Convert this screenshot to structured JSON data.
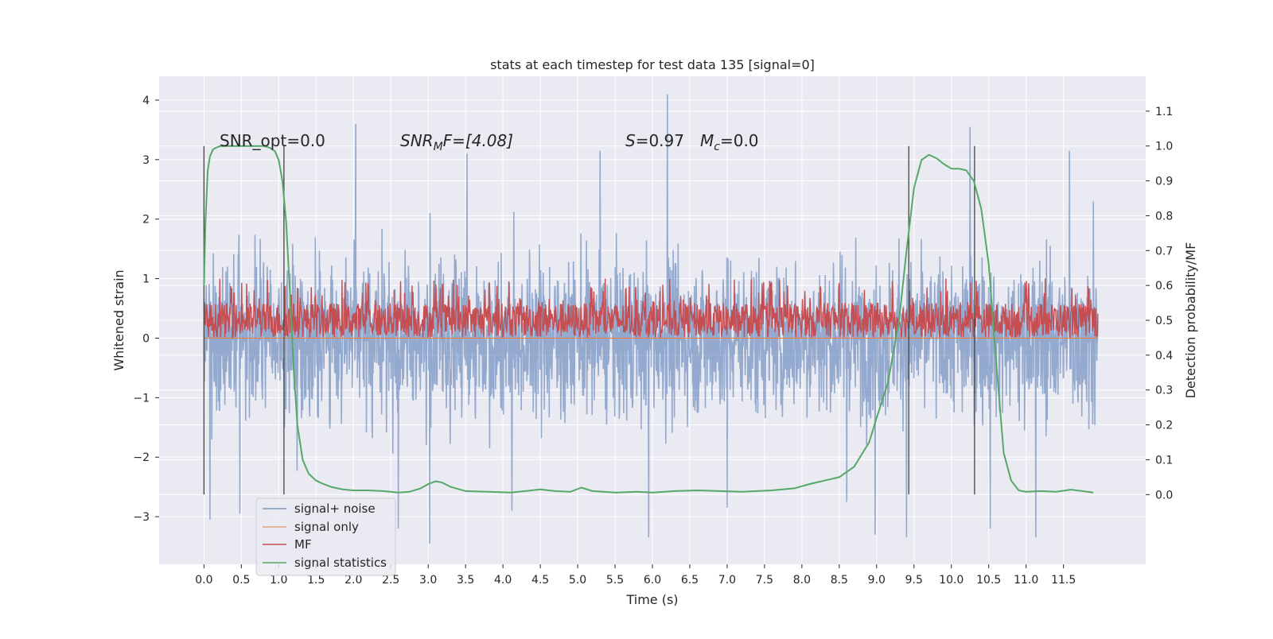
{
  "chart_data": {
    "type": "line",
    "title": "stats at each timestep for test data 135 [signal=0]",
    "xlabel": "Time (s)",
    "ylabel_left": "Whitened strain",
    "ylabel_right": "Detection probability/MF",
    "xlim": [
      -0.6,
      12.6
    ],
    "ylim_left": [
      -3.8,
      4.4
    ],
    "ylim_right": [
      -0.2,
      1.2
    ],
    "x_ticks": [
      0.0,
      0.5,
      1.0,
      1.5,
      2.0,
      2.5,
      3.0,
      3.5,
      4.0,
      4.5,
      5.0,
      5.5,
      6.0,
      6.5,
      7.0,
      7.5,
      8.0,
      8.5,
      9.0,
      9.5,
      10.0,
      10.5,
      11.0,
      11.5
    ],
    "x_tick_labels": [
      "0.0",
      "0.5",
      "1.0",
      "1.5",
      "2.0",
      "2.5",
      "3.0",
      "3.5",
      "4.0",
      "4.5",
      "5.0",
      "5.5",
      "6.0",
      "6.5",
      "7.0",
      "7.5",
      "8.0",
      "8.5",
      "9.0",
      "9.5",
      "10.0",
      "10.5",
      "11.0",
      "11.5"
    ],
    "y_ticks_left": [
      -3,
      -2,
      -1,
      0,
      1,
      2,
      3,
      4
    ],
    "y_tick_labels_left": [
      "−3",
      "−2",
      "−1",
      "0",
      "1",
      "2",
      "3",
      "4"
    ],
    "y_ticks_right": [
      0.0,
      0.1,
      0.2,
      0.3,
      0.4,
      0.5,
      0.6,
      0.7,
      0.8,
      0.9,
      1.0,
      1.1
    ],
    "y_tick_labels_right": [
      "0.0",
      "0.1",
      "0.2",
      "0.3",
      "0.4",
      "0.5",
      "0.6",
      "0.7",
      "0.8",
      "0.9",
      "1.0",
      "1.1"
    ],
    "grid": true,
    "legend_position": "lower-left",
    "annotations": {
      "snr_opt": "SNR_opt=0.0",
      "snr_mf_main": "SNR",
      "snr_mf_sub": "M",
      "snr_mf_rest": "F=[4.08]",
      "s_main": "S",
      "s_rest": "=0.97",
      "mc_main": "M",
      "mc_sub": "c",
      "mc_rest": "=0.0"
    },
    "vertical_markers_x": [
      0.0,
      1.07,
      9.43,
      10.31
    ],
    "series": [
      {
        "name": "signal+ noise",
        "axis": "left",
        "color": "#4c72b0",
        "style": "noise",
        "x_range": [
          0.0,
          11.96
        ],
        "typical_band": [
          -1.5,
          1.5
        ],
        "extreme_range": [
          -3.45,
          4.1
        ],
        "peak_points": [
          {
            "x": 0.08,
            "y": -3.05
          },
          {
            "x": 0.48,
            "y": -2.95
          },
          {
            "x": 2.03,
            "y": 3.6
          },
          {
            "x": 2.6,
            "y": -3.2
          },
          {
            "x": 3.02,
            "y": -3.45
          },
          {
            "x": 3.52,
            "y": 3.1
          },
          {
            "x": 4.12,
            "y": -2.9
          },
          {
            "x": 5.3,
            "y": 3.15
          },
          {
            "x": 5.95,
            "y": -3.35
          },
          {
            "x": 6.2,
            "y": 4.1
          },
          {
            "x": 7.0,
            "y": -2.85
          },
          {
            "x": 8.6,
            "y": -2.75
          },
          {
            "x": 8.98,
            "y": -3.3
          },
          {
            "x": 9.4,
            "y": -3.35
          },
          {
            "x": 10.25,
            "y": 3.55
          },
          {
            "x": 10.52,
            "y": -3.2
          },
          {
            "x": 11.13,
            "y": -3.35
          },
          {
            "x": 11.58,
            "y": 3.15
          },
          {
            "x": 11.9,
            "y": 2.3
          }
        ]
      },
      {
        "name": "signal only",
        "axis": "left",
        "color": "#dd8452",
        "x": [
          0.0,
          11.96
        ],
        "y": [
          0.0,
          0.0
        ]
      },
      {
        "name": "MF",
        "axis": "right",
        "color": "#c44e52",
        "style": "noise",
        "x_range": [
          0.0,
          11.96
        ],
        "typical_band": [
          0.45,
          0.55
        ],
        "extreme_range": [
          0.44,
          0.62
        ]
      },
      {
        "name": "signal statistics",
        "axis": "right",
        "color": "#55a868",
        "x": [
          0.0,
          0.02,
          0.05,
          0.08,
          0.12,
          0.16,
          0.22,
          0.3,
          0.45,
          0.6,
          0.8,
          0.88,
          0.95,
          1.0,
          1.05,
          1.1,
          1.15,
          1.2,
          1.25,
          1.32,
          1.4,
          1.5,
          1.6,
          1.7,
          1.85,
          2.0,
          2.2,
          2.4,
          2.6,
          2.75,
          2.9,
          3.0,
          3.1,
          3.18,
          3.3,
          3.5,
          3.8,
          4.1,
          4.3,
          4.5,
          4.7,
          4.9,
          5.05,
          5.2,
          5.5,
          5.8,
          6.0,
          6.3,
          6.6,
          6.9,
          7.2,
          7.6,
          7.9,
          8.1,
          8.3,
          8.5,
          8.7,
          8.9,
          9.0,
          9.15,
          9.3,
          9.4,
          9.5,
          9.6,
          9.7,
          9.8,
          9.9,
          10.0,
          10.1,
          10.2,
          10.3,
          10.4,
          10.5,
          10.6,
          10.7,
          10.8,
          10.9,
          11.0,
          11.2,
          11.4,
          11.6,
          11.75,
          11.9
        ],
        "y": [
          0.6,
          0.78,
          0.93,
          0.97,
          0.99,
          0.995,
          1.0,
          1.0,
          1.0,
          1.0,
          1.0,
          0.995,
          0.985,
          0.96,
          0.9,
          0.78,
          0.58,
          0.36,
          0.2,
          0.1,
          0.06,
          0.04,
          0.03,
          0.022,
          0.015,
          0.012,
          0.012,
          0.01,
          0.006,
          0.008,
          0.018,
          0.03,
          0.038,
          0.035,
          0.022,
          0.01,
          0.008,
          0.006,
          0.01,
          0.015,
          0.01,
          0.008,
          0.02,
          0.01,
          0.006,
          0.008,
          0.006,
          0.01,
          0.012,
          0.01,
          0.008,
          0.012,
          0.018,
          0.03,
          0.04,
          0.05,
          0.08,
          0.15,
          0.22,
          0.32,
          0.5,
          0.7,
          0.88,
          0.96,
          0.975,
          0.965,
          0.948,
          0.935,
          0.935,
          0.93,
          0.9,
          0.82,
          0.66,
          0.38,
          0.12,
          0.04,
          0.012,
          0.008,
          0.01,
          0.008,
          0.014,
          0.01,
          0.006
        ]
      }
    ]
  }
}
